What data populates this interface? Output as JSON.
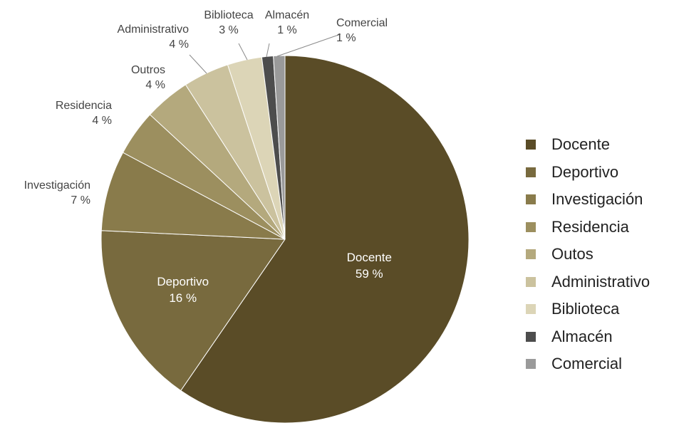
{
  "chart_data": {
    "type": "pie",
    "title": "",
    "slices": [
      {
        "label": "Docente",
        "value": 59,
        "value_label": "59 %",
        "color": "#5a4c27"
      },
      {
        "label": "Deportivo",
        "value": 16,
        "value_label": "16 %",
        "color": "#786a3e"
      },
      {
        "label": "Investigación",
        "value": 7,
        "value_label": "7 %",
        "color": "#897b4b"
      },
      {
        "label": "Residencia",
        "value": 4,
        "value_label": "4 %",
        "color": "#9c8f5f"
      },
      {
        "label": "Outros",
        "value": 4,
        "value_label": "4 %",
        "color": "#b4a97d"
      },
      {
        "label": "Administrativo",
        "value": 4,
        "value_label": "4 %",
        "color": "#cbc29e"
      },
      {
        "label": "Biblioteca",
        "value": 3,
        "value_label": "3 %",
        "color": "#dcd5b7"
      },
      {
        "label": "Almacén",
        "value": 1,
        "value_label": "1 %",
        "color": "#4d4d4d"
      },
      {
        "label": "Comercial",
        "value": 1,
        "value_label": "1 %",
        "color": "#9a9a9a"
      }
    ],
    "legend": {
      "placement": "right",
      "entries": [
        "Docente",
        "Deportivo",
        "Investigación",
        "Residencia",
        "Outos",
        "Administrativo",
        "Biblioteca",
        "Almacén",
        "Comercial"
      ]
    }
  }
}
